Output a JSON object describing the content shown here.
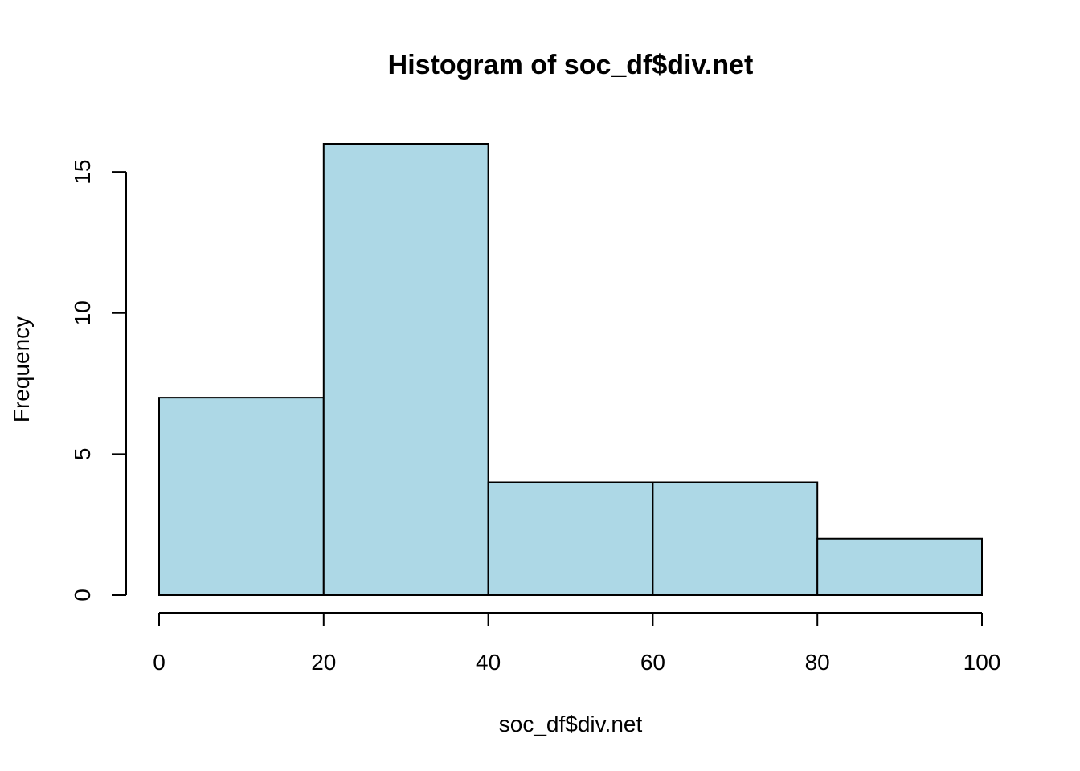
{
  "chart_data": {
    "type": "bar",
    "title": "Histogram of soc_df$div.net",
    "xlabel": "soc_df$div.net",
    "ylabel": "Frequency",
    "bins": [
      {
        "from": 0,
        "to": 20,
        "count": 7
      },
      {
        "from": 20,
        "to": 40,
        "count": 16
      },
      {
        "from": 40,
        "to": 60,
        "count": 4
      },
      {
        "from": 60,
        "to": 80,
        "count": 4
      },
      {
        "from": 80,
        "to": 100,
        "count": 2
      }
    ],
    "xlim": [
      0,
      100
    ],
    "ylim": [
      0,
      16
    ],
    "x_ticks": [
      0,
      20,
      40,
      60,
      80,
      100
    ],
    "y_ticks": [
      0,
      5,
      10,
      15
    ],
    "bar_color": "#add8e6",
    "grid": false,
    "legend": "none"
  }
}
